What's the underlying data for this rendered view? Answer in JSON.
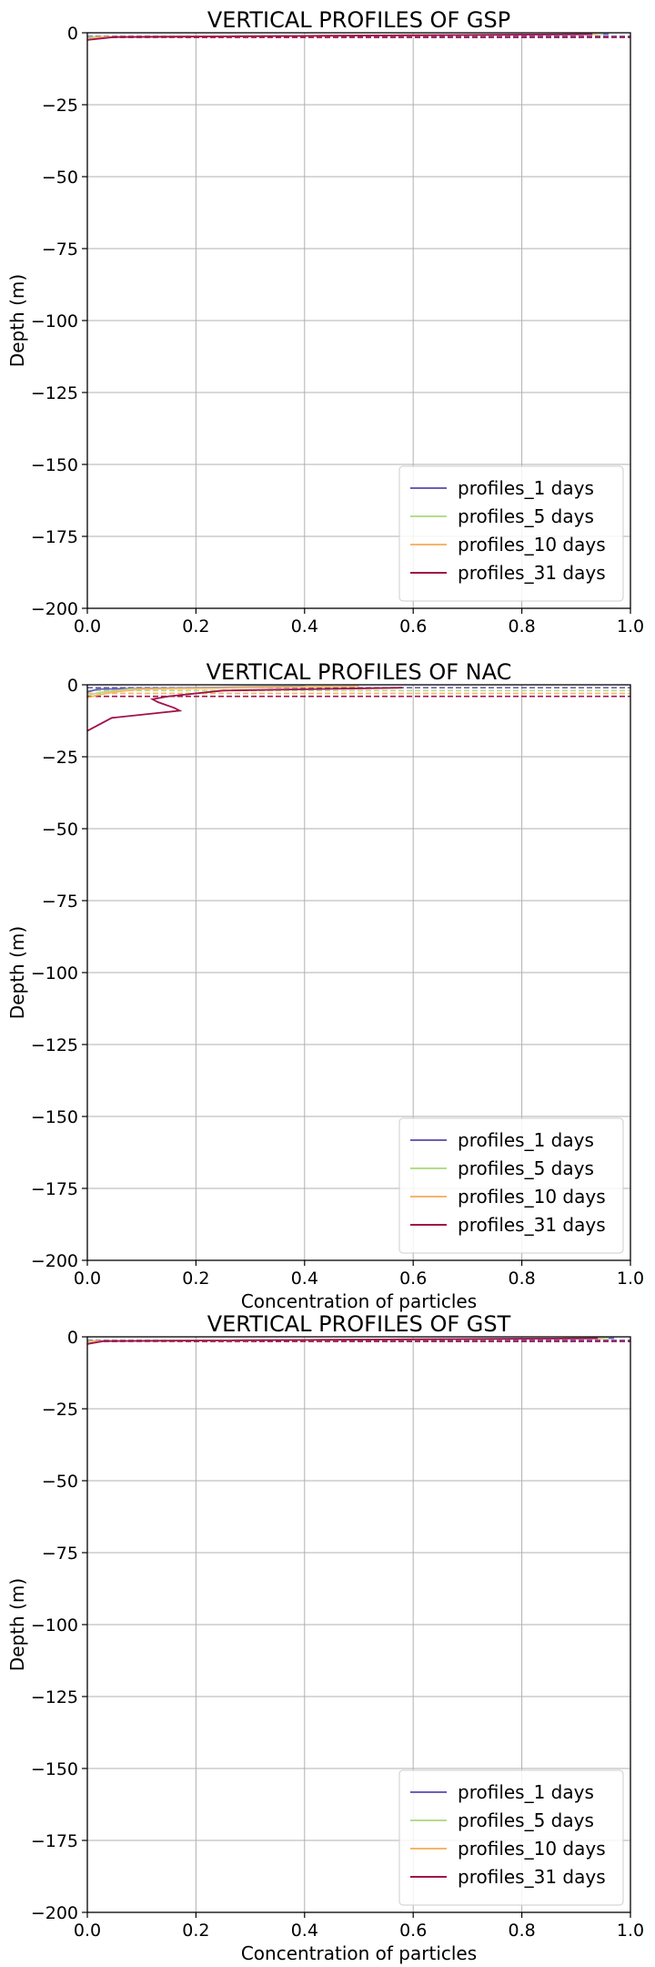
{
  "chart_data": [
    {
      "type": "line",
      "title": "VERTICAL PROFILES OF GSP",
      "xlabel": "",
      "ylabel": "Depth (m)",
      "xlim": [
        0,
        1
      ],
      "ylim": [
        -200,
        0
      ],
      "x_ticks": [
        "0.0",
        "0.2",
        "0.4",
        "0.6",
        "0.8",
        "1.0"
      ],
      "y_ticks": [
        "0",
        "−25",
        "−50",
        "−75",
        "−100",
        "−125",
        "−150",
        "−175",
        "−200"
      ],
      "grid": true,
      "legend_position": "lower-right",
      "series": [
        {
          "name": "profiles_1 days",
          "color": "#6a5fb8",
          "points": [
            [
              0.96,
              -0.5
            ],
            [
              0,
              -1.5
            ]
          ]
        },
        {
          "name": "profiles_5 days",
          "color": "#b5dc8a",
          "points": [
            [
              0.95,
              -0.5
            ],
            [
              0,
              -1.5
            ]
          ]
        },
        {
          "name": "profiles_10 days",
          "color": "#f7b56a",
          "points": [
            [
              0.94,
              -0.5
            ],
            [
              0.02,
              -1.5
            ],
            [
              0,
              -2.5
            ]
          ]
        },
        {
          "name": "profiles_31 days",
          "color": "#a0134a",
          "points": [
            [
              0.93,
              -0.5
            ],
            [
              0.05,
              -1.5
            ],
            [
              0,
              -2.5
            ]
          ]
        }
      ],
      "mean_depth_lines": [
        {
          "color": "#6a5fb8",
          "y": -1.2
        },
        {
          "color": "#a0134a",
          "y": -1.6
        }
      ]
    },
    {
      "type": "line",
      "title": "VERTICAL PROFILES OF NAC",
      "xlabel": "Concentration of particles",
      "ylabel": "Depth (m)",
      "xlim": [
        0,
        1
      ],
      "ylim": [
        -200,
        0
      ],
      "x_ticks": [
        "0.0",
        "0.2",
        "0.4",
        "0.6",
        "0.8",
        "1.0"
      ],
      "y_ticks": [
        "0",
        "−25",
        "−50",
        "−75",
        "−100",
        "−125",
        "−150",
        "−175",
        "−200"
      ],
      "grid": true,
      "legend_position": "lower-right",
      "series": [
        {
          "name": "profiles_1 days",
          "color": "#6a5fb8",
          "points": [
            [
              0.4,
              -0.5
            ],
            [
              0.02,
              -1.5
            ],
            [
              0,
              -2.5
            ]
          ]
        },
        {
          "name": "profiles_5 days",
          "color": "#b5dc8a",
          "points": [
            [
              0.45,
              -0.5
            ],
            [
              0.08,
              -1.5
            ],
            [
              0.03,
              -2.5
            ],
            [
              0,
              -3.5
            ]
          ]
        },
        {
          "name": "profiles_10 days",
          "color": "#f7b56a",
          "points": [
            [
              0.5,
              -0.5
            ],
            [
              0.1,
              -1.5
            ],
            [
              0.05,
              -2.5
            ],
            [
              0.02,
              -3.5
            ],
            [
              0,
              -4.5
            ]
          ]
        },
        {
          "name": "profiles_31 days",
          "color": "#a0134a",
          "points": [
            [
              0.58,
              -1.0
            ],
            [
              0.25,
              -2.0
            ],
            [
              0.15,
              -4.0
            ],
            [
              0.12,
              -5.0
            ],
            [
              0.13,
              -6.0
            ],
            [
              0.16,
              -8.0
            ],
            [
              0.17,
              -9.0
            ],
            [
              0.045,
              -11.5
            ],
            [
              0,
              -16.0
            ]
          ]
        }
      ],
      "mean_depth_lines": [
        {
          "color": "#6a5fb8",
          "y": -1.0
        },
        {
          "color": "#b5dc8a",
          "y": -2.0
        },
        {
          "color": "#f7b56a",
          "y": -3.0
        },
        {
          "color": "#a0134a",
          "y": -4.0
        }
      ]
    },
    {
      "type": "line",
      "title": "VERTICAL PROFILES OF GST",
      "xlabel": "Concentration of particles",
      "ylabel": "Depth (m)",
      "xlim": [
        0,
        1
      ],
      "ylim": [
        -200,
        0
      ],
      "x_ticks": [
        "0.0",
        "0.2",
        "0.4",
        "0.6",
        "0.8",
        "1.0"
      ],
      "y_ticks": [
        "0",
        "−25",
        "−50",
        "−75",
        "−100",
        "−125",
        "−150",
        "−175",
        "−200"
      ],
      "grid": true,
      "legend_position": "lower-right",
      "series": [
        {
          "name": "profiles_1 days",
          "color": "#6a5fb8",
          "points": [
            [
              0.97,
              -0.5
            ],
            [
              0,
              -1.5
            ]
          ]
        },
        {
          "name": "profiles_5 days",
          "color": "#b5dc8a",
          "points": [
            [
              0.96,
              -0.5
            ],
            [
              0,
              -1.5
            ]
          ]
        },
        {
          "name": "profiles_10 days",
          "color": "#f7b56a",
          "points": [
            [
              0.95,
              -0.5
            ],
            [
              0.01,
              -1.5
            ],
            [
              0,
              -2.5
            ]
          ]
        },
        {
          "name": "profiles_31 days",
          "color": "#a0134a",
          "points": [
            [
              0.94,
              -0.5
            ],
            [
              0.03,
              -1.5
            ],
            [
              0,
              -2.5
            ]
          ]
        }
      ],
      "mean_depth_lines": [
        {
          "color": "#6a5fb8",
          "y": -1.2
        },
        {
          "color": "#a0134a",
          "y": -1.6
        }
      ]
    }
  ]
}
